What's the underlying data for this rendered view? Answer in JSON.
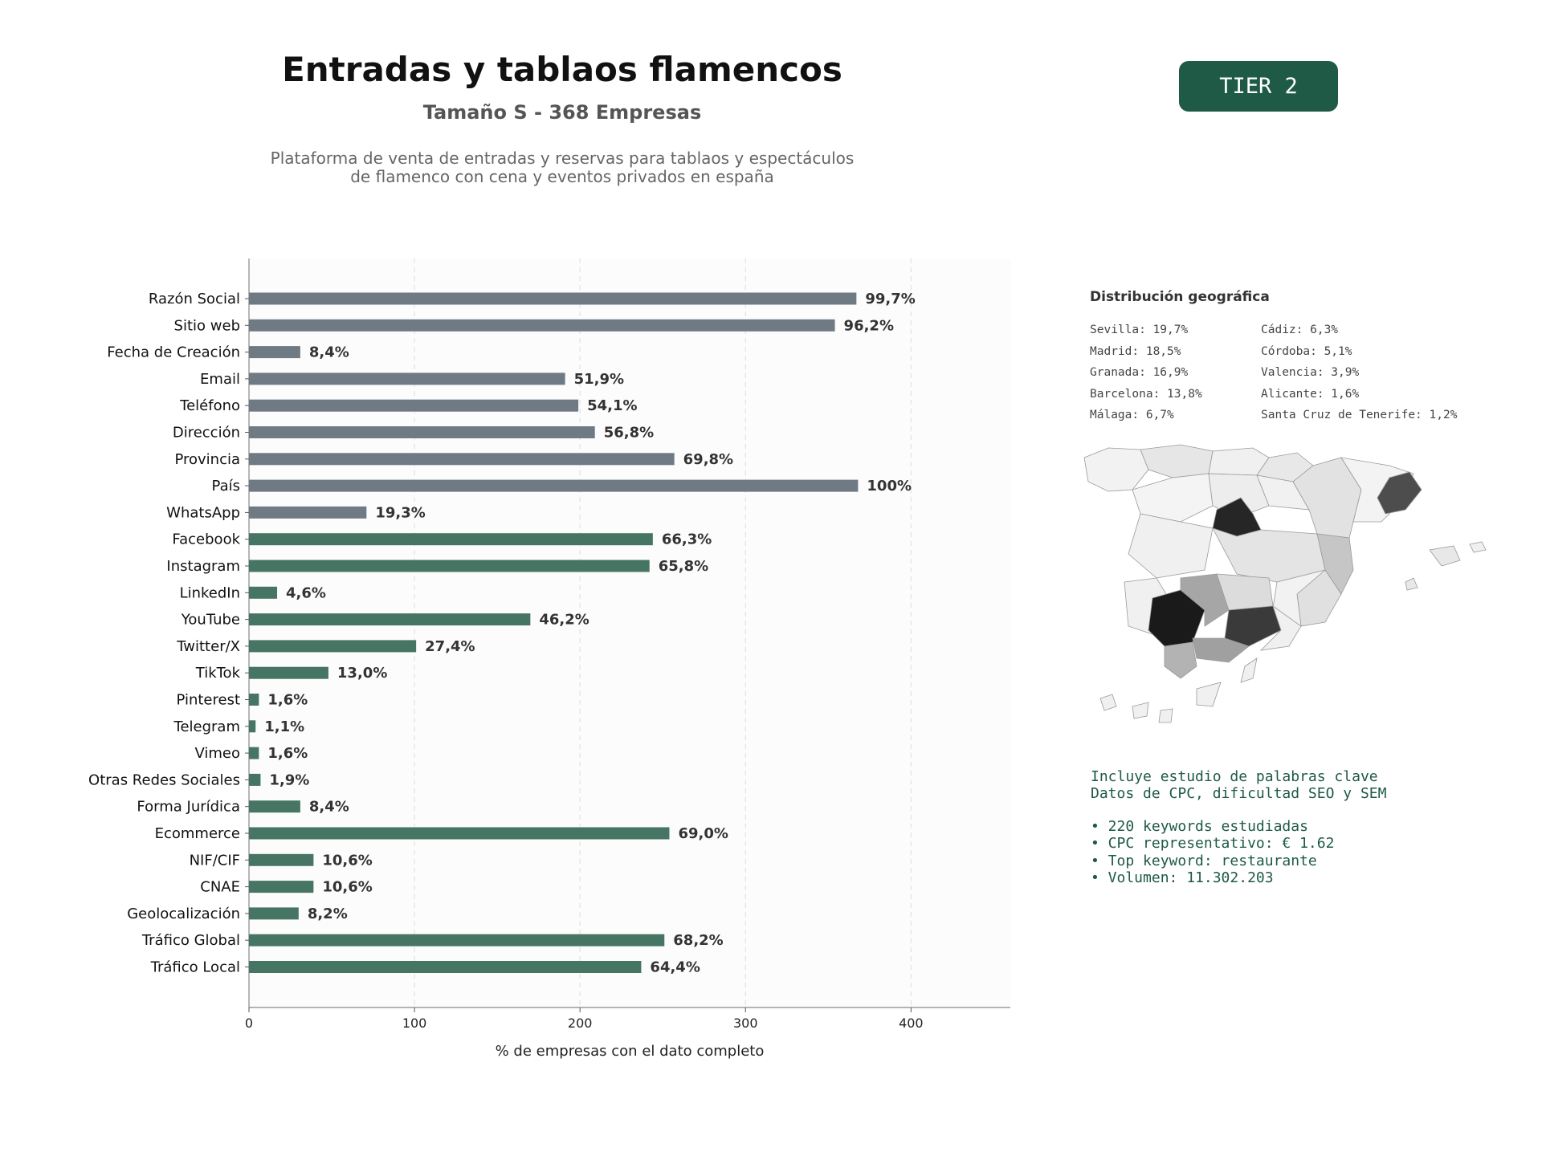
{
  "header": {
    "title": "Entradas y tablaos flamencos",
    "subtitle": "Tamaño S - 368 Empresas",
    "description_line1": "Plataforma de venta de entradas y reservas para tablaos y espectáculos",
    "description_line2": "de flamenco con cena y eventos privados en españa",
    "tier_badge": "TIER 2"
  },
  "colors": {
    "gray_bar": "#6f7a85",
    "green_bar": "#477563",
    "accent": "#1e5a45"
  },
  "chart_data": {
    "type": "bar",
    "orientation": "horizontal",
    "xlabel": "% de empresas con el dato completo",
    "xlim": [
      0,
      460
    ],
    "xticks": [
      0,
      100,
      200,
      300,
      400
    ],
    "grid": "vertical dashed",
    "categories": [
      "Razón Social",
      "Sitio web",
      "Fecha de Creación",
      "Email",
      "Teléfono",
      "Dirección",
      "Provincia",
      "País",
      "WhatsApp",
      "Facebook",
      "Instagram",
      "LinkedIn",
      "YouTube",
      "Twitter/X",
      "TikTok",
      "Pinterest",
      "Telegram",
      "Vimeo",
      "Otras Redes Sociales",
      "Forma Jurídica",
      "Ecommerce",
      "NIF/CIF",
      "CNAE",
      "Geolocalización",
      "Tráfico Global",
      "Tráfico Local"
    ],
    "values": [
      367,
      354,
      31,
      191,
      199,
      209,
      257,
      368,
      71,
      244,
      242,
      17,
      170,
      101,
      48,
      6,
      4,
      6,
      7,
      31,
      254,
      39,
      39,
      30,
      251,
      237
    ],
    "labels": [
      "99,7%",
      "96,2%",
      "8,4%",
      "51,9%",
      "54,1%",
      "56,8%",
      "69,8%",
      "100%",
      "19,3%",
      "66,3%",
      "65,8%",
      "4,6%",
      "46,2%",
      "27,4%",
      "13,0%",
      "1,6%",
      "1,1%",
      "1,6%",
      "1,9%",
      "8,4%",
      "69,0%",
      "10,6%",
      "10,6%",
      "8,2%",
      "68,2%",
      "64,4%"
    ],
    "bar_colors": [
      "gray",
      "gray",
      "gray",
      "gray",
      "gray",
      "gray",
      "gray",
      "gray",
      "gray",
      "green",
      "green",
      "green",
      "green",
      "green",
      "green",
      "green",
      "green",
      "green",
      "green",
      "green",
      "green",
      "green",
      "green",
      "green",
      "green",
      "green"
    ]
  },
  "geo": {
    "title": "Distribución geográfica",
    "left": [
      "Sevilla: 19,7%",
      "Madrid: 18,5%",
      "Granada: 16,9%",
      "Barcelona: 13,8%",
      "Málaga: 6,7%"
    ],
    "right": [
      "Cádiz: 6,3%",
      "Córdoba: 5,1%",
      "Valencia: 3,9%",
      "Alicante: 1,6%",
      "Santa Cruz de Tenerife: 1,2%"
    ]
  },
  "keywords": {
    "line1": "Incluye estudio de palabras clave",
    "line2": "Datos de CPC, dificultad SEO y SEM",
    "bullets": [
      "• 220 keywords estudiadas",
      "• CPC representativo: € 1.62",
      "• Top keyword: restaurante",
      "• Volumen: 11.302.203"
    ]
  }
}
